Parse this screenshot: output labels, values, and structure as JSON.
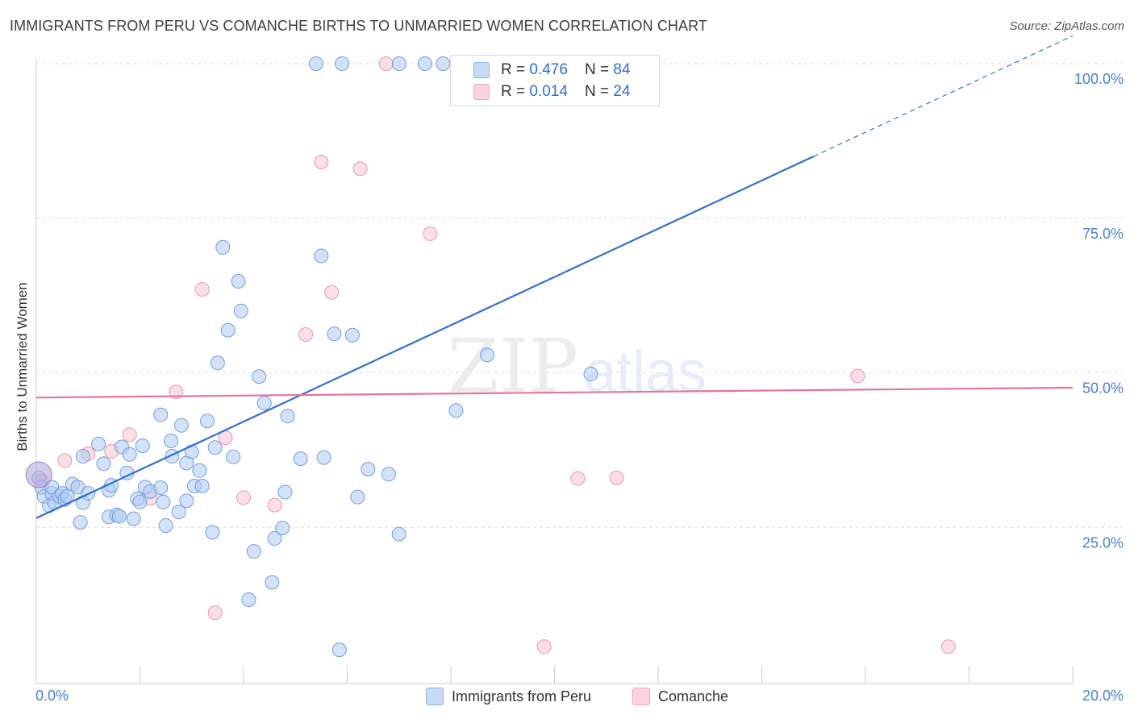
{
  "title": "IMMIGRANTS FROM PERU VS COMANCHE BIRTHS TO UNMARRIED WOMEN CORRELATION CHART",
  "source": "Source: ZipAtlas.com",
  "watermark": {
    "zip": "ZIP",
    "atlas": "atlas"
  },
  "legend_stats": [
    {
      "r_label": "R = ",
      "r_value": "0.476",
      "n_label": "N = ",
      "n_value": "84",
      "color": "#a9c7f0"
    },
    {
      "r_label": "R = ",
      "r_value": "0.014",
      "n_label": "N = ",
      "n_value": "24",
      "color": "#f7b5c8"
    }
  ],
  "colors": {
    "blue_fill": "#aecbf2",
    "blue_stroke": "#6f9fe0",
    "blue_line": "#2f6fd1",
    "pink_fill": "#f8c2d2",
    "pink_stroke": "#e899b2",
    "pink_line": "#e8739c",
    "axis_text": "#4a7fd4"
  },
  "chart_data": {
    "type": "scatter",
    "title": "IMMIGRANTS FROM PERU VS COMANCHE BIRTHS TO UNMARRIED WOMEN CORRELATION CHART",
    "xlabel": "",
    "ylabel": "Births to Unmarried Women",
    "xlim": [
      0,
      20
    ],
    "ylim": [
      0,
      102
    ],
    "x_tick_labels": [
      "0.0%",
      "20.0%"
    ],
    "y_ticks": [
      25,
      50,
      75,
      100
    ],
    "y_tick_labels": [
      "25.0%",
      "50.0%",
      "75.0%",
      "100.0%"
    ],
    "grid": true,
    "legend_position": "bottom",
    "series": [
      {
        "name": "Immigrants from Peru",
        "color": "#aecbf2",
        "trend": {
          "x0": 0,
          "y0": 26.5,
          "x1": 15,
          "y1": 85.0,
          "dashed_to_x": 20,
          "dashed_to_y": 104.5
        },
        "points": [
          [
            0.05,
            33.0
          ],
          [
            0.1,
            31.5
          ],
          [
            0.15,
            30.0
          ],
          [
            0.25,
            28.5
          ],
          [
            0.3,
            30.5
          ],
          [
            0.3,
            31.5
          ],
          [
            0.35,
            29.0
          ],
          [
            0.45,
            30.0
          ],
          [
            0.5,
            30.5
          ],
          [
            0.55,
            29.5
          ],
          [
            0.6,
            30.0
          ],
          [
            0.7,
            32.0
          ],
          [
            0.8,
            31.5
          ],
          [
            0.85,
            25.8
          ],
          [
            0.9,
            29.0
          ],
          [
            0.9,
            36.5
          ],
          [
            1.0,
            30.5
          ],
          [
            1.2,
            38.5
          ],
          [
            1.3,
            35.3
          ],
          [
            1.4,
            26.7
          ],
          [
            1.4,
            31.0
          ],
          [
            1.45,
            31.8
          ],
          [
            1.55,
            27.0
          ],
          [
            1.6,
            26.8
          ],
          [
            1.65,
            38.0
          ],
          [
            1.75,
            33.8
          ],
          [
            1.8,
            36.8
          ],
          [
            1.88,
            26.4
          ],
          [
            1.95,
            29.6
          ],
          [
            2.0,
            29.1
          ],
          [
            2.05,
            38.2
          ],
          [
            2.1,
            31.5
          ],
          [
            2.2,
            30.8
          ],
          [
            2.4,
            31.4
          ],
          [
            2.4,
            43.2
          ],
          [
            2.45,
            29.1
          ],
          [
            2.5,
            25.3
          ],
          [
            2.6,
            39.0
          ],
          [
            2.62,
            36.5
          ],
          [
            2.75,
            27.5
          ],
          [
            2.8,
            41.5
          ],
          [
            2.9,
            35.4
          ],
          [
            2.9,
            29.3
          ],
          [
            3.0,
            37.2
          ],
          [
            3.05,
            31.7
          ],
          [
            3.15,
            34.2
          ],
          [
            3.2,
            31.7
          ],
          [
            3.3,
            42.2
          ],
          [
            3.4,
            24.2
          ],
          [
            3.45,
            37.9
          ],
          [
            3.5,
            51.6
          ],
          [
            3.6,
            70.3
          ],
          [
            3.7,
            56.9
          ],
          [
            3.8,
            36.4
          ],
          [
            3.9,
            64.8
          ],
          [
            3.95,
            60.0
          ],
          [
            4.1,
            13.3
          ],
          [
            4.2,
            21.1
          ],
          [
            4.3,
            49.4
          ],
          [
            4.4,
            45.1
          ],
          [
            4.55,
            16.1
          ],
          [
            4.6,
            23.2
          ],
          [
            4.75,
            24.9
          ],
          [
            4.8,
            30.7
          ],
          [
            4.85,
            43.0
          ],
          [
            5.1,
            36.1
          ],
          [
            5.4,
            100.0
          ],
          [
            5.5,
            68.9
          ],
          [
            5.55,
            36.3
          ],
          [
            5.75,
            56.3
          ],
          [
            5.85,
            5.2
          ],
          [
            5.9,
            100.0
          ],
          [
            6.1,
            56.1
          ],
          [
            6.2,
            29.9
          ],
          [
            6.4,
            34.4
          ],
          [
            6.8,
            33.6
          ],
          [
            7.0,
            23.9
          ],
          [
            7.0,
            100.0
          ],
          [
            7.5,
            100.0
          ],
          [
            7.85,
            100.0
          ],
          [
            8.1,
            43.9
          ],
          [
            8.7,
            52.9
          ],
          [
            10.7,
            49.8
          ],
          [
            10.8,
            100.0
          ]
        ]
      },
      {
        "name": "Comanche",
        "color": "#f7b5c8",
        "trend": {
          "x0": 0,
          "y0": 46.0,
          "x1": 20,
          "y1": 47.6
        },
        "points": [
          [
            0.1,
            32.5
          ],
          [
            0.55,
            35.8
          ],
          [
            1.0,
            36.9
          ],
          [
            1.45,
            37.3
          ],
          [
            1.8,
            40.0
          ],
          [
            2.2,
            29.7
          ],
          [
            2.7,
            46.9
          ],
          [
            3.2,
            63.5
          ],
          [
            3.45,
            11.2
          ],
          [
            3.65,
            39.5
          ],
          [
            4.0,
            29.8
          ],
          [
            4.6,
            28.6
          ],
          [
            5.2,
            56.2
          ],
          [
            5.5,
            84.1
          ],
          [
            5.7,
            63.0
          ],
          [
            6.25,
            83.0
          ],
          [
            6.75,
            100.0
          ],
          [
            7.6,
            72.5
          ],
          [
            9.8,
            5.7
          ],
          [
            10.45,
            32.9
          ],
          [
            11.2,
            33.0
          ],
          [
            11.3,
            100.0
          ],
          [
            15.85,
            49.5
          ],
          [
            17.6,
            5.7
          ]
        ]
      }
    ]
  }
}
